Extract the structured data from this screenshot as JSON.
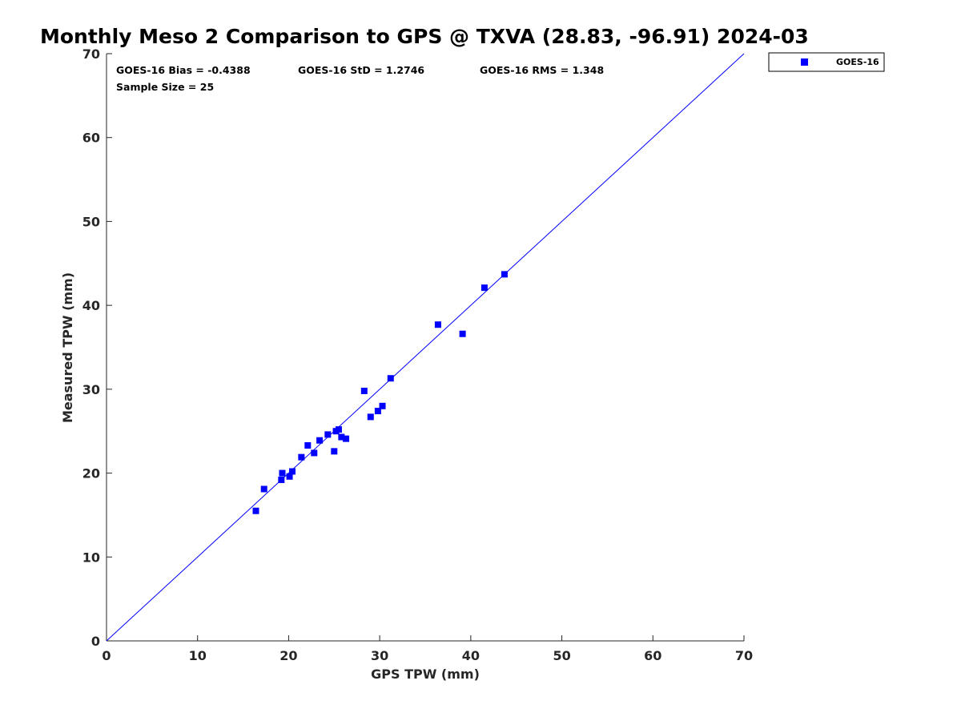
{
  "chart_data": {
    "type": "scatter",
    "title": "Monthly Meso 2 Comparison to GPS @ TXVA (28.83, -96.91) 2024-03",
    "xlabel": "GPS TPW (mm)",
    "ylabel": "Measured TPW (mm)",
    "xlim": [
      0,
      70
    ],
    "ylim": [
      0,
      70
    ],
    "xticks": [
      0,
      10,
      20,
      30,
      40,
      50,
      60,
      70
    ],
    "yticks": [
      0,
      10,
      20,
      30,
      40,
      50,
      60,
      70
    ],
    "grid": false,
    "legend_position": "top-right outside",
    "stats": {
      "bias": "GOES-16 Bias = -0.4388",
      "std": "GOES-16 StD = 1.2746",
      "rms": "GOES-16 RMS = 1.348",
      "sample": "Sample Size = 25"
    },
    "reference_line": {
      "from": [
        0,
        0
      ],
      "to": [
        70,
        70
      ],
      "color": "#0000ff"
    },
    "series": [
      {
        "name": "GOES-16",
        "color": "#0000ff",
        "marker": "square",
        "points": [
          [
            16.4,
            15.5
          ],
          [
            17.3,
            18.1
          ],
          [
            19.2,
            19.2
          ],
          [
            19.3,
            20.0
          ],
          [
            20.1,
            19.6
          ],
          [
            20.4,
            20.2
          ],
          [
            21.4,
            21.9
          ],
          [
            22.1,
            23.3
          ],
          [
            22.8,
            22.4
          ],
          [
            23.4,
            23.9
          ],
          [
            24.3,
            24.6
          ],
          [
            25.0,
            22.6
          ],
          [
            25.2,
            25.0
          ],
          [
            25.5,
            25.2
          ],
          [
            25.8,
            24.3
          ],
          [
            26.3,
            24.1
          ],
          [
            28.3,
            29.8
          ],
          [
            29.0,
            26.7
          ],
          [
            29.8,
            27.4
          ],
          [
            30.3,
            28.0
          ],
          [
            31.2,
            31.3
          ],
          [
            36.4,
            37.7
          ],
          [
            39.1,
            36.6
          ],
          [
            41.5,
            42.1
          ],
          [
            43.7,
            43.7
          ]
        ]
      }
    ]
  }
}
